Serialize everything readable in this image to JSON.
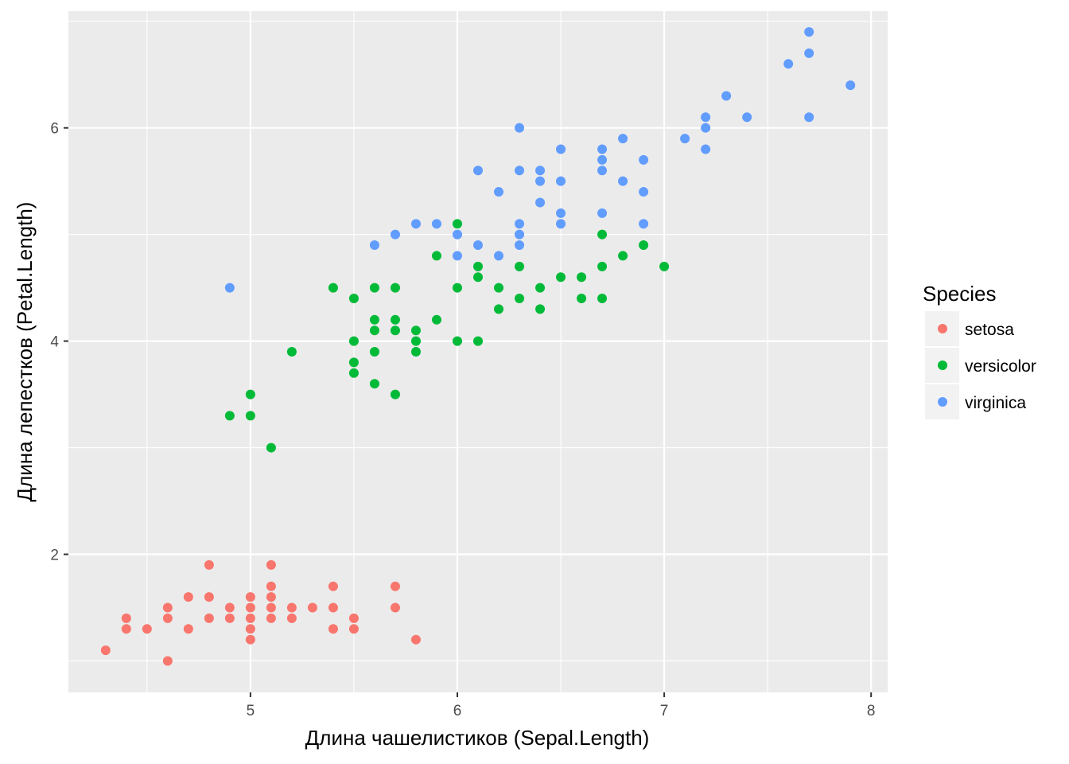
{
  "chart_data": {
    "type": "scatter",
    "title": "",
    "xlabel": "Длина чашелистиков (Sepal.Length)",
    "ylabel": "Длина лепестков (Petal.Length)",
    "xlim": [
      4.12,
      8.08
    ],
    "ylim": [
      0.705,
      7.095
    ],
    "x_ticks": [
      5,
      6,
      7,
      8
    ],
    "y_ticks": [
      2,
      4,
      6
    ],
    "x_tick_labels": [
      "5",
      "6",
      "7",
      "8"
    ],
    "y_tick_labels": [
      "2",
      "4",
      "6"
    ],
    "grid": true,
    "panel_background": "#ebebeb",
    "legend": {
      "title": "Species",
      "position": "right"
    },
    "series": [
      {
        "name": "setosa",
        "color": "#f8766d",
        "points": [
          [
            4.3,
            1.1
          ],
          [
            4.4,
            1.4
          ],
          [
            4.4,
            1.3
          ],
          [
            4.5,
            1.3
          ],
          [
            4.6,
            1.5
          ],
          [
            4.6,
            1.4
          ],
          [
            4.6,
            1.0
          ],
          [
            4.7,
            1.6
          ],
          [
            4.7,
            1.3
          ],
          [
            4.8,
            1.9
          ],
          [
            4.8,
            1.6
          ],
          [
            4.8,
            1.4
          ],
          [
            4.9,
            1.5
          ],
          [
            4.9,
            1.4
          ],
          [
            5.0,
            1.6
          ],
          [
            5.0,
            1.5
          ],
          [
            5.0,
            1.4
          ],
          [
            5.0,
            1.3
          ],
          [
            5.0,
            1.2
          ],
          [
            5.1,
            1.9
          ],
          [
            5.1,
            1.7
          ],
          [
            5.1,
            1.6
          ],
          [
            5.1,
            1.5
          ],
          [
            5.1,
            1.4
          ],
          [
            5.2,
            1.5
          ],
          [
            5.2,
            1.4
          ],
          [
            5.3,
            1.5
          ],
          [
            5.4,
            1.7
          ],
          [
            5.4,
            1.5
          ],
          [
            5.4,
            1.3
          ],
          [
            5.5,
            1.4
          ],
          [
            5.5,
            1.3
          ],
          [
            5.7,
            1.7
          ],
          [
            5.7,
            1.5
          ],
          [
            5.8,
            1.2
          ]
        ]
      },
      {
        "name": "versicolor",
        "color": "#00ba38",
        "points": [
          [
            4.9,
            3.3
          ],
          [
            5.0,
            3.5
          ],
          [
            5.0,
            3.3
          ],
          [
            5.1,
            3.0
          ],
          [
            5.2,
            3.9
          ],
          [
            5.4,
            4.5
          ],
          [
            5.5,
            4.4
          ],
          [
            5.5,
            4.0
          ],
          [
            5.5,
            3.8
          ],
          [
            5.5,
            3.7
          ],
          [
            5.6,
            4.5
          ],
          [
            5.6,
            4.2
          ],
          [
            5.6,
            4.1
          ],
          [
            5.6,
            3.9
          ],
          [
            5.6,
            3.6
          ],
          [
            5.7,
            4.5
          ],
          [
            5.7,
            4.2
          ],
          [
            5.7,
            4.1
          ],
          [
            5.7,
            3.5
          ],
          [
            5.8,
            4.1
          ],
          [
            5.8,
            4.0
          ],
          [
            5.8,
            3.9
          ],
          [
            5.9,
            4.8
          ],
          [
            5.9,
            4.2
          ],
          [
            6.0,
            5.1
          ],
          [
            6.0,
            4.5
          ],
          [
            6.0,
            4.0
          ],
          [
            6.1,
            4.7
          ],
          [
            6.1,
            4.6
          ],
          [
            6.1,
            4.0
          ],
          [
            6.2,
            4.5
          ],
          [
            6.2,
            4.3
          ],
          [
            6.3,
            4.7
          ],
          [
            6.3,
            4.4
          ],
          [
            6.4,
            4.5
          ],
          [
            6.4,
            4.3
          ],
          [
            6.5,
            4.6
          ],
          [
            6.6,
            4.6
          ],
          [
            6.6,
            4.4
          ],
          [
            6.7,
            5.0
          ],
          [
            6.7,
            4.7
          ],
          [
            6.7,
            4.4
          ],
          [
            6.8,
            4.8
          ],
          [
            6.9,
            4.9
          ],
          [
            7.0,
            4.7
          ]
        ]
      },
      {
        "name": "virginica",
        "color": "#619cff",
        "points": [
          [
            4.9,
            4.5
          ],
          [
            5.6,
            4.9
          ],
          [
            5.7,
            5.0
          ],
          [
            5.8,
            5.1
          ],
          [
            5.9,
            5.1
          ],
          [
            6.0,
            5.0
          ],
          [
            6.0,
            4.8
          ],
          [
            6.1,
            5.6
          ],
          [
            6.1,
            4.9
          ],
          [
            6.2,
            5.4
          ],
          [
            6.2,
            4.8
          ],
          [
            6.3,
            6.0
          ],
          [
            6.3,
            5.6
          ],
          [
            6.3,
            5.1
          ],
          [
            6.3,
            5.0
          ],
          [
            6.3,
            4.9
          ],
          [
            6.4,
            5.6
          ],
          [
            6.4,
            5.5
          ],
          [
            6.4,
            5.3
          ],
          [
            6.5,
            5.8
          ],
          [
            6.5,
            5.5
          ],
          [
            6.5,
            5.2
          ],
          [
            6.5,
            5.1
          ],
          [
            6.7,
            5.8
          ],
          [
            6.7,
            5.7
          ],
          [
            6.7,
            5.6
          ],
          [
            6.7,
            5.2
          ],
          [
            6.8,
            5.9
          ],
          [
            6.8,
            5.5
          ],
          [
            6.9,
            5.7
          ],
          [
            6.9,
            5.4
          ],
          [
            6.9,
            5.1
          ],
          [
            7.1,
            5.9
          ],
          [
            7.2,
            6.1
          ],
          [
            7.2,
            6.0
          ],
          [
            7.2,
            5.8
          ],
          [
            7.3,
            6.3
          ],
          [
            7.4,
            6.1
          ],
          [
            7.6,
            6.6
          ],
          [
            7.7,
            6.9
          ],
          [
            7.7,
            6.7
          ],
          [
            7.7,
            6.1
          ],
          [
            7.9,
            6.4
          ]
        ]
      }
    ]
  }
}
